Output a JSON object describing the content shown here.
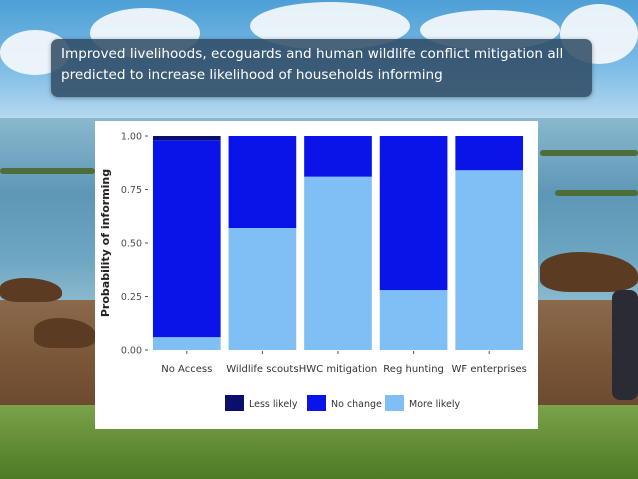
{
  "slide": {
    "title": "Improved livelihoods, ecoguards and human wildlife conflict mitigation all predicted to increase likelihood of households informing"
  },
  "chart_data": {
    "type": "bar",
    "stacked": true,
    "ylabel": "Probability of informing",
    "xlabel": "",
    "ylim": [
      0,
      1
    ],
    "yticks": [
      "0.00",
      "0.25",
      "0.50",
      "0.75",
      "1.00"
    ],
    "ytick_values": [
      0,
      0.25,
      0.5,
      0.75,
      1.0
    ],
    "categories": [
      "No Access",
      "Wildlife scouts",
      "HWC mitigation",
      "Reg hunting",
      "WF enterprises"
    ],
    "series": [
      {
        "name": "More likely",
        "color": "#7fbff5",
        "values": [
          0.06,
          0.57,
          0.81,
          0.28,
          0.84
        ]
      },
      {
        "name": "No change",
        "color": "#0a14e8",
        "values": [
          0.92,
          0.43,
          0.19,
          0.72,
          0.16
        ]
      },
      {
        "name": "Less likely",
        "color": "#0a0f6b",
        "values": [
          0.02,
          0.0,
          0.0,
          0.0,
          0.0
        ]
      }
    ],
    "legend_order": [
      "Less likely",
      "No change",
      "More likely"
    ],
    "legend_position": "bottom",
    "grid": false
  }
}
